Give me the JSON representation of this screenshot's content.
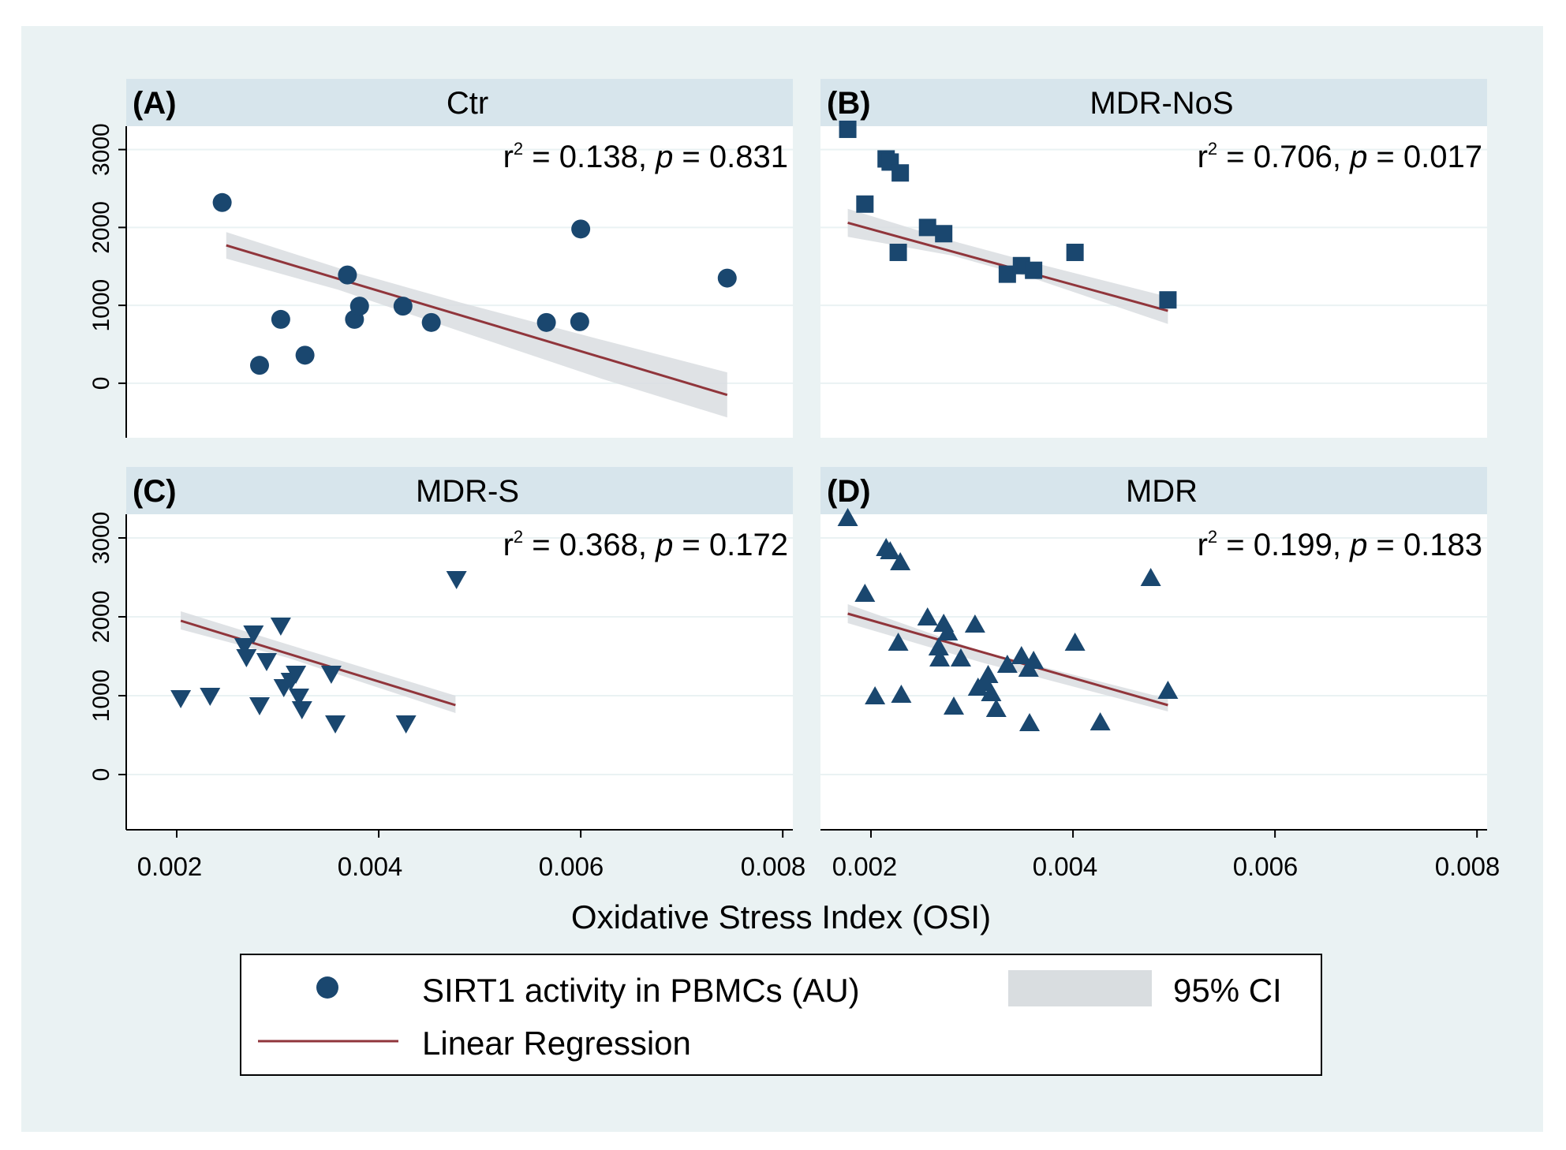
{
  "colors": {
    "outer_bg": "#eaf2f3",
    "plot_bg": "#ffffff",
    "strip_bg": "#d7e5ec",
    "gridline": "#eaf2f3",
    "marker": "#1a476f",
    "fit_line": "#90353b",
    "ci_fill": "#d9dde0",
    "axis": "#000000"
  },
  "figure": {
    "x_axis_title": "Oxidative Stress Index (OSI)",
    "x_ticks": [
      "0.002",
      "0.004",
      "0.006",
      "0.008"
    ],
    "y_ticks": [
      "0",
      "1000",
      "2000",
      "3000"
    ]
  },
  "legend": {
    "marker_label": "SIRT1 activity in PBMCs (AU)",
    "line_label": "Linear Regression",
    "ci_label": "95% CI",
    "marker_icon": "circle-marker-icon"
  },
  "chart_data": [
    {
      "type": "scatter",
      "panel": "(A)",
      "title": "Ctr",
      "marker": "circle",
      "r2_label": "r",
      "r2_value": " = 0.138, ",
      "p_label": "p",
      "p_value": " = 0.831",
      "xlim": [
        0.0015,
        0.0081
      ],
      "ylim": [
        -700,
        3300
      ],
      "points": [
        [
          0.00245,
          2320
        ],
        [
          0.00282,
          230
        ],
        [
          0.00303,
          820
        ],
        [
          0.00327,
          360
        ],
        [
          0.00369,
          1390
        ],
        [
          0.00376,
          820
        ],
        [
          0.00381,
          990
        ],
        [
          0.00424,
          990
        ],
        [
          0.00452,
          780
        ],
        [
          0.00566,
          780
        ],
        [
          0.00599,
          790
        ],
        [
          0.006,
          1980
        ],
        [
          0.00745,
          1350
        ]
      ],
      "fit": {
        "x": [
          0.00249,
          0.00745
        ],
        "y": [
          1770,
          -150
        ]
      },
      "ci": {
        "x": [
          0.00249,
          0.0036,
          0.0048,
          0.0062,
          0.00745
        ],
        "lower": [
          1600,
          1200,
          670,
          60,
          -440
        ],
        "upper": [
          1940,
          1480,
          1040,
          560,
          140
        ]
      }
    },
    {
      "type": "scatter",
      "panel": "(B)",
      "title": "MDR-NoS",
      "marker": "square",
      "r2_label": "r",
      "r2_value": " = 0.706, ",
      "p_label": "p",
      "p_value": " = 0.017",
      "xlim": [
        0.0015,
        0.0081
      ],
      "ylim": [
        -700,
        3300
      ],
      "points": [
        [
          0.00177,
          3260
        ],
        [
          0.00194,
          2300
        ],
        [
          0.00215,
          2880
        ],
        [
          0.00219,
          2840
        ],
        [
          0.00227,
          1680
        ],
        [
          0.00229,
          2700
        ],
        [
          0.00256,
          2000
        ],
        [
          0.00272,
          1920
        ],
        [
          0.00335,
          1400
        ],
        [
          0.00349,
          1510
        ],
        [
          0.00361,
          1450
        ],
        [
          0.00402,
          1680
        ],
        [
          0.00494,
          1070
        ]
      ],
      "fit": {
        "x": [
          0.00177,
          0.00494
        ],
        "y": [
          2060,
          930
        ]
      },
      "ci": {
        "x": [
          0.00177,
          0.0028,
          0.0036,
          0.00494
        ],
        "lower": [
          1880,
          1640,
          1350,
          760
        ],
        "upper": [
          2240,
          1830,
          1550,
          1110
        ]
      }
    },
    {
      "type": "scatter",
      "panel": "(C)",
      "title": "MDR-S",
      "marker": "triangle-down",
      "r2_label": "r",
      "r2_value": " = 0.368, ",
      "p_label": "p",
      "p_value": " = 0.172",
      "xlim": [
        0.0015,
        0.0081
      ],
      "ylim": [
        -700,
        3300
      ],
      "points": [
        [
          0.00204,
          960
        ],
        [
          0.00233,
          990
        ],
        [
          0.00267,
          1620
        ],
        [
          0.00269,
          1480
        ],
        [
          0.00276,
          1780
        ],
        [
          0.00282,
          870
        ],
        [
          0.00289,
          1430
        ],
        [
          0.00303,
          1880
        ],
        [
          0.00306,
          1100
        ],
        [
          0.00313,
          1180
        ],
        [
          0.00318,
          1270
        ],
        [
          0.00321,
          980
        ],
        [
          0.00324,
          820
        ],
        [
          0.00353,
          1270
        ],
        [
          0.00357,
          640
        ],
        [
          0.00427,
          640
        ],
        [
          0.00477,
          2470
        ]
      ],
      "fit": {
        "x": [
          0.00204,
          0.00476
        ],
        "y": [
          1950,
          880
        ]
      },
      "ci": {
        "x": [
          0.00204,
          0.0031,
          0.00476
        ],
        "lower": [
          1840,
          1480,
          780
        ],
        "upper": [
          2070,
          1650,
          1000
        ]
      }
    },
    {
      "type": "scatter",
      "panel": "(D)",
      "title": "MDR",
      "marker": "triangle-up",
      "r2_label": "r",
      "r2_value": " = 0.199, ",
      "p_label": "p",
      "p_value": " = 0.183",
      "xlim": [
        0.0015,
        0.0081
      ],
      "ylim": [
        -700,
        3300
      ],
      "points": [
        [
          0.00177,
          3260
        ],
        [
          0.00194,
          2300
        ],
        [
          0.00204,
          1000
        ],
        [
          0.00215,
          2880
        ],
        [
          0.00219,
          2840
        ],
        [
          0.00227,
          1680
        ],
        [
          0.00229,
          2700
        ],
        [
          0.0023,
          1020
        ],
        [
          0.00256,
          2000
        ],
        [
          0.00267,
          1620
        ],
        [
          0.00268,
          1480
        ],
        [
          0.00272,
          1920
        ],
        [
          0.00276,
          1810
        ],
        [
          0.00282,
          870
        ],
        [
          0.00289,
          1480
        ],
        [
          0.00303,
          1910
        ],
        [
          0.00306,
          1110
        ],
        [
          0.00313,
          1170
        ],
        [
          0.00316,
          1270
        ],
        [
          0.00319,
          1040
        ],
        [
          0.00324,
          840
        ],
        [
          0.00335,
          1400
        ],
        [
          0.00349,
          1510
        ],
        [
          0.00356,
          1350
        ],
        [
          0.00357,
          660
        ],
        [
          0.00361,
          1450
        ],
        [
          0.00402,
          1680
        ],
        [
          0.00427,
          670
        ],
        [
          0.00477,
          2500
        ],
        [
          0.00494,
          1070
        ]
      ],
      "fit": {
        "x": [
          0.00177,
          0.00494
        ],
        "y": [
          2040,
          880
        ]
      },
      "ci": {
        "x": [
          0.00177,
          0.0031,
          0.00494
        ],
        "lower": [
          1920,
          1420,
          800
        ],
        "upper": [
          2160,
          1560,
          960
        ]
      }
    }
  ]
}
